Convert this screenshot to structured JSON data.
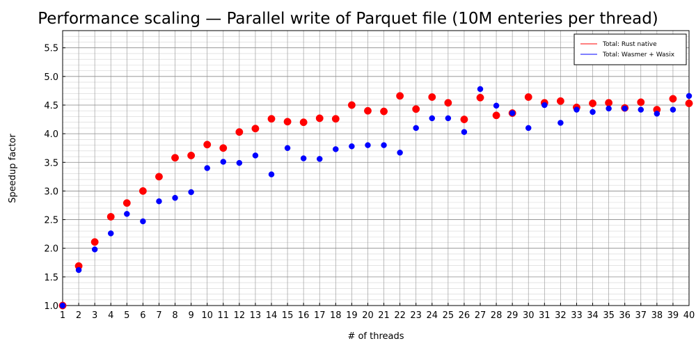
{
  "chart_data": {
    "type": "scatter",
    "title": "Performance scaling — Parallel write of Parquet file (10M enteries per thread)",
    "xlabel": "# of threads",
    "ylabel": "Speedup factor",
    "xlim": [
      1,
      40
    ],
    "ylim": [
      1.0,
      5.8
    ],
    "x_ticks": [
      "1",
      "2",
      "3",
      "4",
      "5",
      "6",
      "7",
      "8",
      "9",
      "10",
      "11",
      "12",
      "13",
      "14",
      "15",
      "16",
      "17",
      "18",
      "19",
      "20",
      "21",
      "22",
      "23",
      "24",
      "25",
      "26",
      "27",
      "28",
      "29",
      "30",
      "31",
      "32",
      "33",
      "34",
      "35",
      "36",
      "37",
      "38",
      "39",
      "40"
    ],
    "y_ticks": [
      "1.0",
      "1.5",
      "2.0",
      "2.5",
      "3.0",
      "3.5",
      "4.0",
      "4.5",
      "5.0",
      "5.5"
    ],
    "grid": true,
    "minor_grid": true,
    "legend_position": "top-right",
    "x": [
      1,
      2,
      3,
      4,
      5,
      6,
      7,
      8,
      9,
      10,
      11,
      12,
      13,
      14,
      15,
      16,
      17,
      18,
      19,
      20,
      21,
      22,
      23,
      24,
      25,
      26,
      27,
      28,
      29,
      30,
      31,
      32,
      33,
      34,
      35,
      36,
      37,
      38,
      39,
      40
    ],
    "series": [
      {
        "name": "Total: Rust native",
        "color": "#ff0000",
        "values": [
          1.0,
          1.69,
          2.11,
          2.55,
          2.79,
          3.0,
          3.25,
          3.58,
          3.62,
          3.81,
          3.75,
          4.03,
          4.09,
          4.26,
          4.21,
          4.2,
          4.27,
          4.26,
          4.5,
          4.4,
          4.39,
          4.66,
          4.43,
          4.64,
          4.54,
          4.25,
          4.63,
          4.32,
          4.36,
          4.64,
          4.54,
          4.57,
          4.46,
          4.53,
          4.54,
          4.45,
          4.55,
          4.42,
          4.61,
          4.53
        ]
      },
      {
        "name": "Total: Wasmer + Wasix",
        "color": "#0000ff",
        "values": [
          1.0,
          1.62,
          1.98,
          2.26,
          2.6,
          2.47,
          2.82,
          2.88,
          2.98,
          3.4,
          3.51,
          3.49,
          3.62,
          3.29,
          3.75,
          3.57,
          3.56,
          3.73,
          3.78,
          3.8,
          3.8,
          3.67,
          4.1,
          4.27,
          4.27,
          4.03,
          4.78,
          4.49,
          4.36,
          4.1,
          4.5,
          4.19,
          4.42,
          4.38,
          4.44,
          4.44,
          4.42,
          4.35,
          4.42,
          4.66
        ]
      }
    ]
  }
}
